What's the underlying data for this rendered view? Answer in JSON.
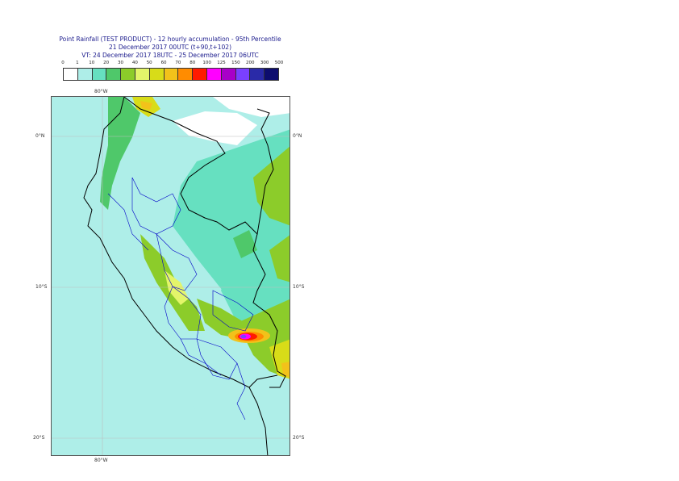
{
  "title": {
    "line1": "Point Rainfall (TEST PRODUCT) - 12 hourly accumulation - 95th Percentile",
    "line2": "21 December 2017 00UTC (t+90,t+102)",
    "line3": "VT: 24 December 2017 18UTC - 25 December 2017 06UTC"
  },
  "colorbar": {
    "ticks": [
      "0",
      "1",
      "10",
      "20",
      "30",
      "40",
      "50",
      "60",
      "70",
      "80",
      "100",
      "125",
      "150",
      "200",
      "300",
      "500"
    ],
    "colors": [
      "#ffffff",
      "#aeeee8",
      "#66e0c0",
      "#4fc86a",
      "#8ccc2a",
      "#e3f56a",
      "#d8dc18",
      "#f2c21a",
      "#ff8c00",
      "#ff1a00",
      "#ff00ff",
      "#a800c8",
      "#7a40ff",
      "#2a2aa8",
      "#0d0d6e"
    ]
  },
  "axes": {
    "lon_top": "80°W",
    "lon_bottom": "80°W",
    "lat_left": [
      "0°N",
      "10°S",
      "20°S"
    ],
    "lat_right": [
      "0°N",
      "10°S",
      "20°S"
    ]
  }
}
